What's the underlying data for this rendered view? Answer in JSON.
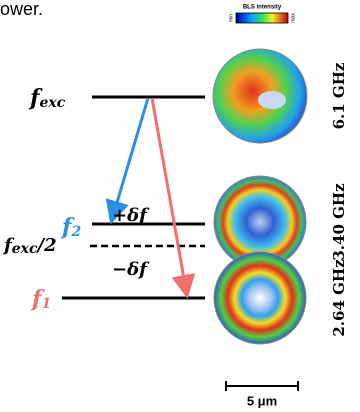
{
  "caption_fragment": "ower.",
  "colorbar": {
    "title": "BLS intensity",
    "min": "min",
    "max": "max"
  },
  "levels": {
    "f_exc": {
      "main": "f",
      "sub": "exc"
    },
    "f_2": {
      "main": "f",
      "sub": "2"
    },
    "plus_delta": "+δf",
    "half": {
      "main": "f",
      "sub": "exc",
      "rest": "/2"
    },
    "minus_delta": "−δf",
    "f_1": {
      "main": "f",
      "sub": "1"
    }
  },
  "modes": [
    "6.1 GHz",
    "3.40 GHz",
    "2.64 GHz"
  ],
  "scale_bar": "5 μm"
}
